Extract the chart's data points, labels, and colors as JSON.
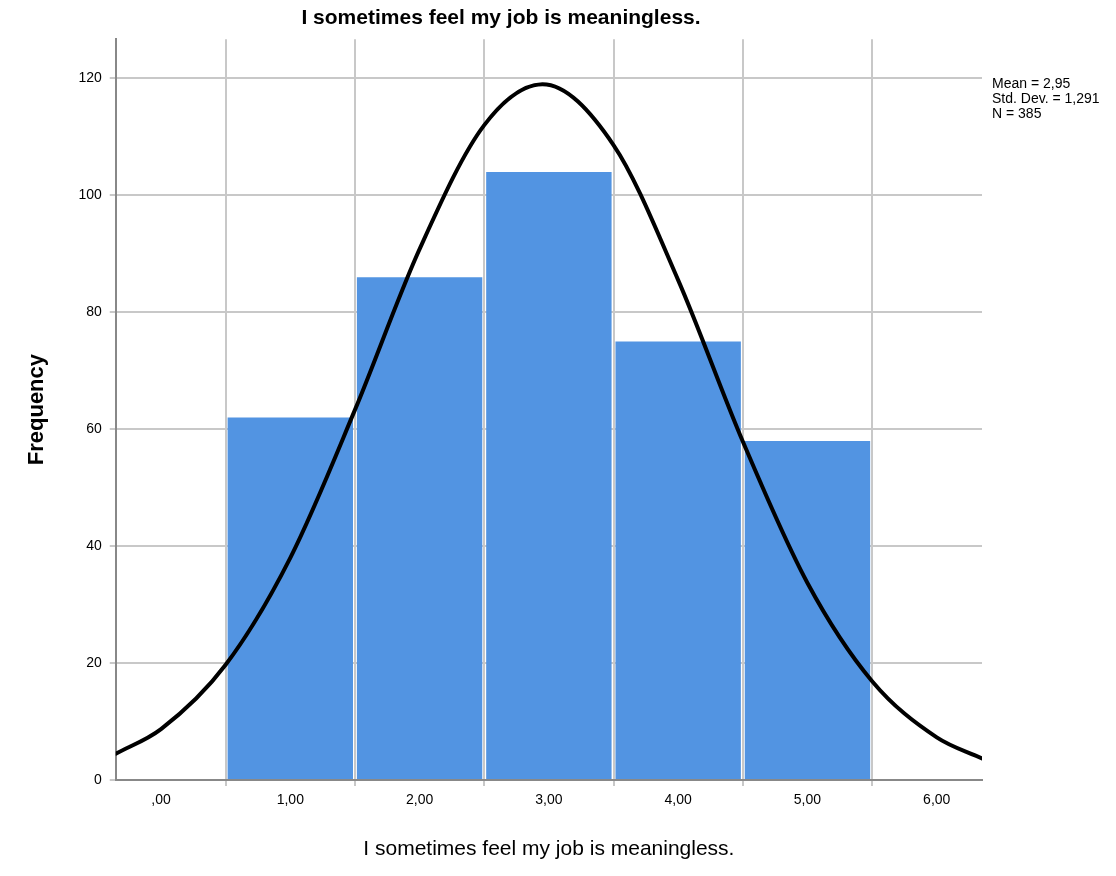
{
  "chart_data": {
    "type": "histogram",
    "title": "I sometimes feel my job is meaningless.",
    "xlabel": "I sometimes feel my job is meaningless.",
    "ylabel": "Frequency",
    "bins": [
      0.5,
      1.5,
      2.5,
      3.5,
      4.5,
      5.5
    ],
    "values": [
      62,
      86,
      104,
      75,
      58
    ],
    "color": "#5294e2",
    "series": [
      {
        "type": "line",
        "color": "#000000",
        "x": [
          -0.35,
          0,
          0.5,
          1,
          1.5,
          2,
          2.5,
          2.95,
          3.5,
          4,
          4.5,
          5,
          5.5,
          6,
          6.35
        ],
        "values": [
          4.5,
          8.7,
          19.7,
          38,
          63.3,
          90.8,
          112,
          119,
          108.6,
          85.5,
          57.9,
          33.7,
          16.9,
          7.3,
          3.7
        ]
      }
    ],
    "marker": "none",
    "xlim": [
      -0.35,
      6.35
    ],
    "ylim": [
      0,
      126.7
    ],
    "xticks": [
      {
        "value": 0,
        "label": ",00"
      },
      {
        "value": 1,
        "label": "1,00"
      },
      {
        "value": 2,
        "label": "2,00"
      },
      {
        "value": 3,
        "label": "3,00"
      },
      {
        "value": 4,
        "label": "4,00"
      },
      {
        "value": 5,
        "label": "5,00"
      },
      {
        "value": 6,
        "label": "6,00"
      }
    ],
    "yticks": [
      0,
      20,
      40,
      60,
      80,
      100,
      120
    ],
    "grid": true,
    "legend": false,
    "annotations": [
      "Mean = 2,95",
      "Std. Dev. = 1,291",
      "N = 385"
    ]
  }
}
